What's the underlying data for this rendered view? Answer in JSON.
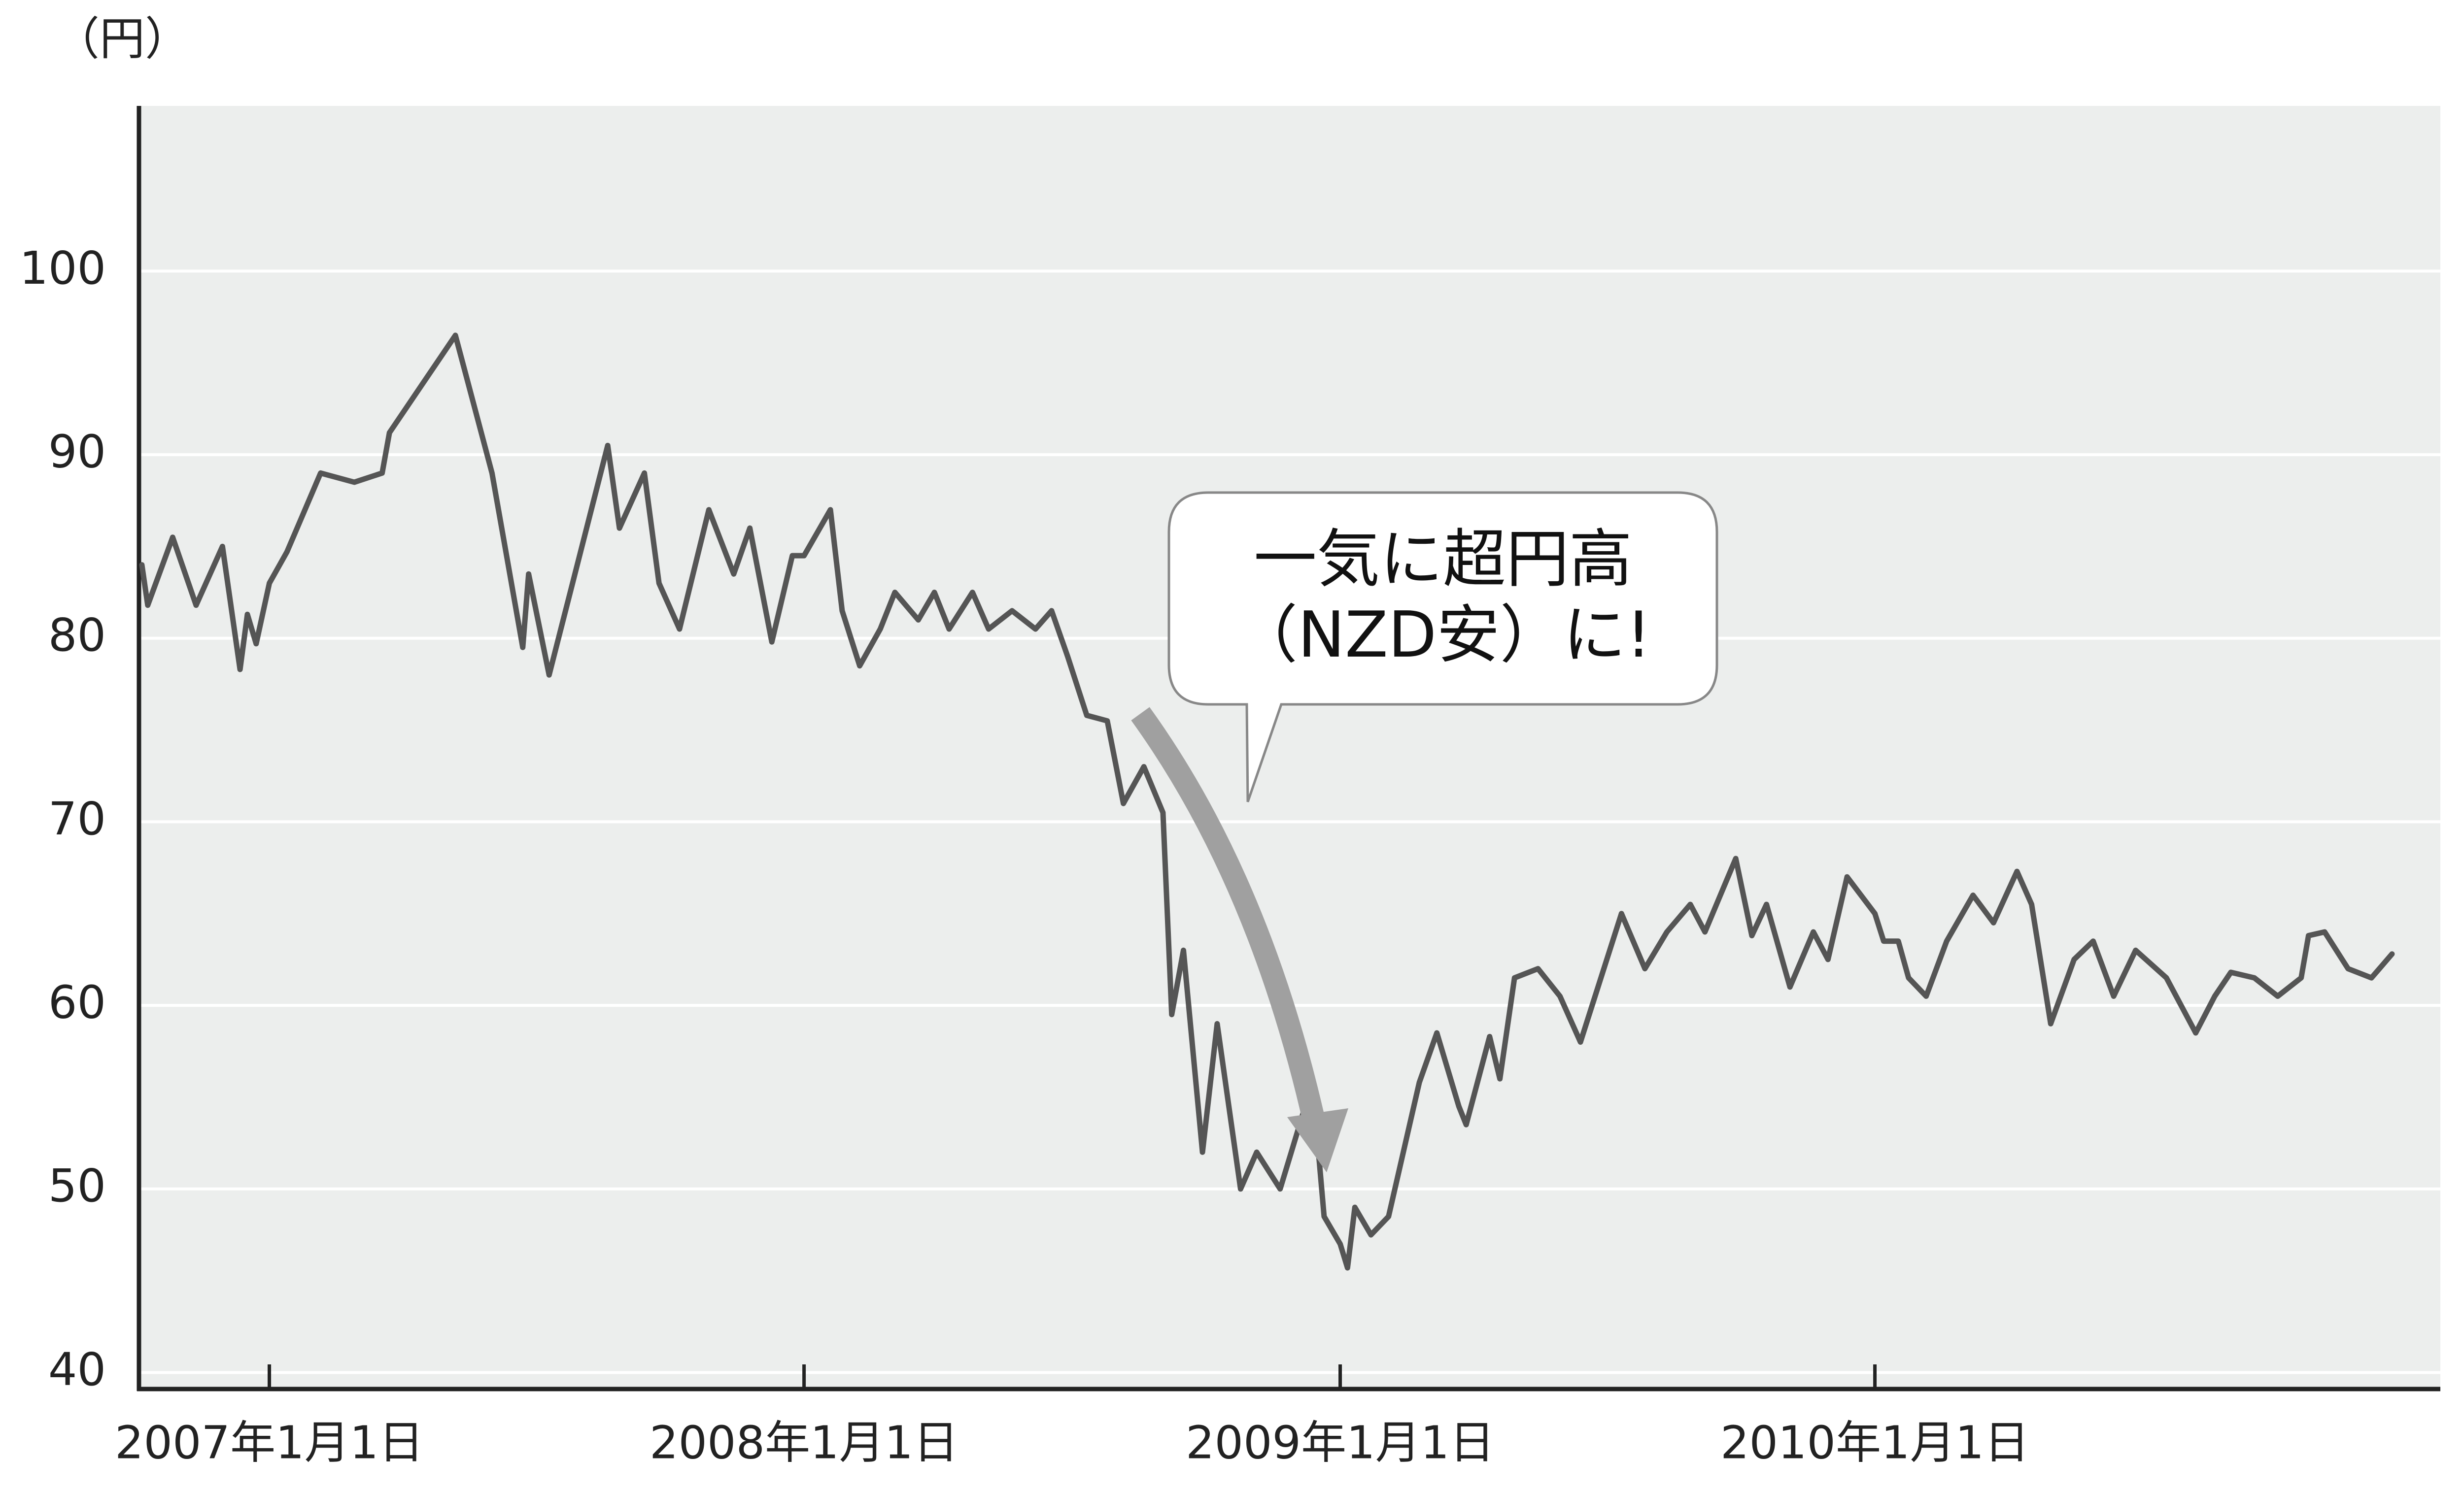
{
  "chart_data": {
    "type": "line",
    "y_label": "（円）",
    "annotations": [
      "一気に超円高",
      "（NZD安）に!"
    ],
    "color": "#555555",
    "background": "#eceeed",
    "grid": true,
    "x": [
      "2006-10-06",
      "2006-10-10",
      "2006-10-27",
      "2006-11-12",
      "2006-11-30",
      "2006-12-12",
      "2006-12-17",
      "2006-12-23",
      "2007-01-01",
      "2007-01-13",
      "2007-02-05",
      "2007-02-28",
      "2007-03-19",
      "2007-03-24",
      "2007-05-08",
      "2007-06-02",
      "2007-06-23",
      "2007-06-27",
      "2007-07-11",
      "2007-08-20",
      "2007-08-28",
      "2007-09-14",
      "2007-09-24",
      "2007-10-08",
      "2007-10-28",
      "2007-11-14",
      "2007-11-25",
      "2007-12-10",
      "2007-12-24",
      "2008-01-01",
      "2008-01-19",
      "2008-01-27",
      "2008-02-08",
      "2008-02-22",
      "2008-03-03",
      "2008-03-19",
      "2008-03-30",
      "2008-04-09",
      "2008-04-25",
      "2008-05-06",
      "2008-05-22",
      "2008-06-07",
      "2008-06-18",
      "2008-06-29",
      "2008-07-12",
      "2008-07-26",
      "2008-08-06",
      "2008-08-20",
      "2008-09-02",
      "2008-09-08",
      "2008-09-16",
      "2008-09-29",
      "2008-10-09",
      "2008-10-17",
      "2008-10-25",
      "2008-11-05",
      "2008-11-21",
      "2008-12-13",
      "2008-12-21",
      "2009-01-01",
      "2009-01-06",
      "2009-01-11",
      "2009-01-22",
      "2009-02-03",
      "2009-02-24",
      "2009-03-08",
      "2009-03-23",
      "2009-03-28",
      "2009-04-13",
      "2009-04-20",
      "2009-04-30",
      "2009-05-16",
      "2009-05-31",
      "2009-06-14",
      "2009-06-26",
      "2009-07-12",
      "2009-07-28",
      "2009-08-12",
      "2009-08-28",
      "2009-09-07",
      "2009-09-28",
      "2009-10-09",
      "2009-10-19",
      "2009-11-04",
      "2009-11-20",
      "2009-11-30",
      "2009-12-13",
      "2010-01-01",
      "2010-01-07",
      "2010-01-17",
      "2010-01-24",
      "2010-02-05",
      "2010-02-19",
      "2010-03-09",
      "2010-03-23",
      "2010-04-08",
      "2010-04-18",
      "2010-05-01",
      "2010-05-17",
      "2010-05-30",
      "2010-06-13",
      "2010-06-28",
      "2010-07-19",
      "2010-08-08",
      "2010-08-21",
      "2010-09-01",
      "2010-09-17",
      "2010-10-03",
      "2010-10-19",
      "2010-10-24",
      "2010-11-04",
      "2010-11-20",
      "2010-12-06",
      "2010-12-20"
    ],
    "values": [
      84,
      81.8,
      85.5,
      81.8,
      85,
      78.3,
      81.3,
      79.7,
      83,
      84.7,
      89,
      88.5,
      89,
      91.2,
      96.5,
      89,
      79.5,
      83.5,
      78,
      90.5,
      86,
      89,
      83,
      80.5,
      87,
      83.5,
      86,
      79.8,
      84.5,
      84.5,
      87,
      81.5,
      78.5,
      80.5,
      82.5,
      81,
      82.5,
      80.5,
      82.5,
      80.5,
      81.5,
      80.5,
      81.5,
      79,
      75.8,
      75.5,
      71,
      73,
      70.5,
      59.5,
      63,
      52,
      59,
      54.5,
      50,
      52,
      50,
      55.8,
      48.5,
      47,
      45.7,
      49,
      47.5,
      48.5,
      55.8,
      58.5,
      54.5,
      53.5,
      58.3,
      56,
      61.5,
      62,
      60.5,
      58,
      61,
      65,
      62,
      64,
      65.5,
      64,
      68,
      63.8,
      65.5,
      61,
      64,
      62.5,
      67,
      65,
      63.5,
      63.5,
      61.5,
      60.5,
      63.5,
      66,
      64.5,
      67.3,
      65.5,
      59,
      62.5,
      63.5,
      60.5,
      63,
      61.5,
      58.5,
      60.5,
      61.8,
      61.5,
      60.5,
      61.5,
      63.8,
      64,
      62,
      61.5,
      62.8
    ],
    "xlim": [
      "2006-10-04",
      "2011-01-22"
    ],
    "xticks": [
      {
        "value": "2007-01-01",
        "label": "2007年1月1日"
      },
      {
        "value": "2008-01-01",
        "label": "2008年1月1日"
      },
      {
        "value": "2009-01-01",
        "label": "2009年1月1日"
      },
      {
        "value": "2010-01-01",
        "label": "2010年1月1日"
      }
    ],
    "ylim": [
      39.1,
      109
    ],
    "yticks": [
      40,
      50,
      60,
      70,
      80,
      90,
      100
    ]
  }
}
